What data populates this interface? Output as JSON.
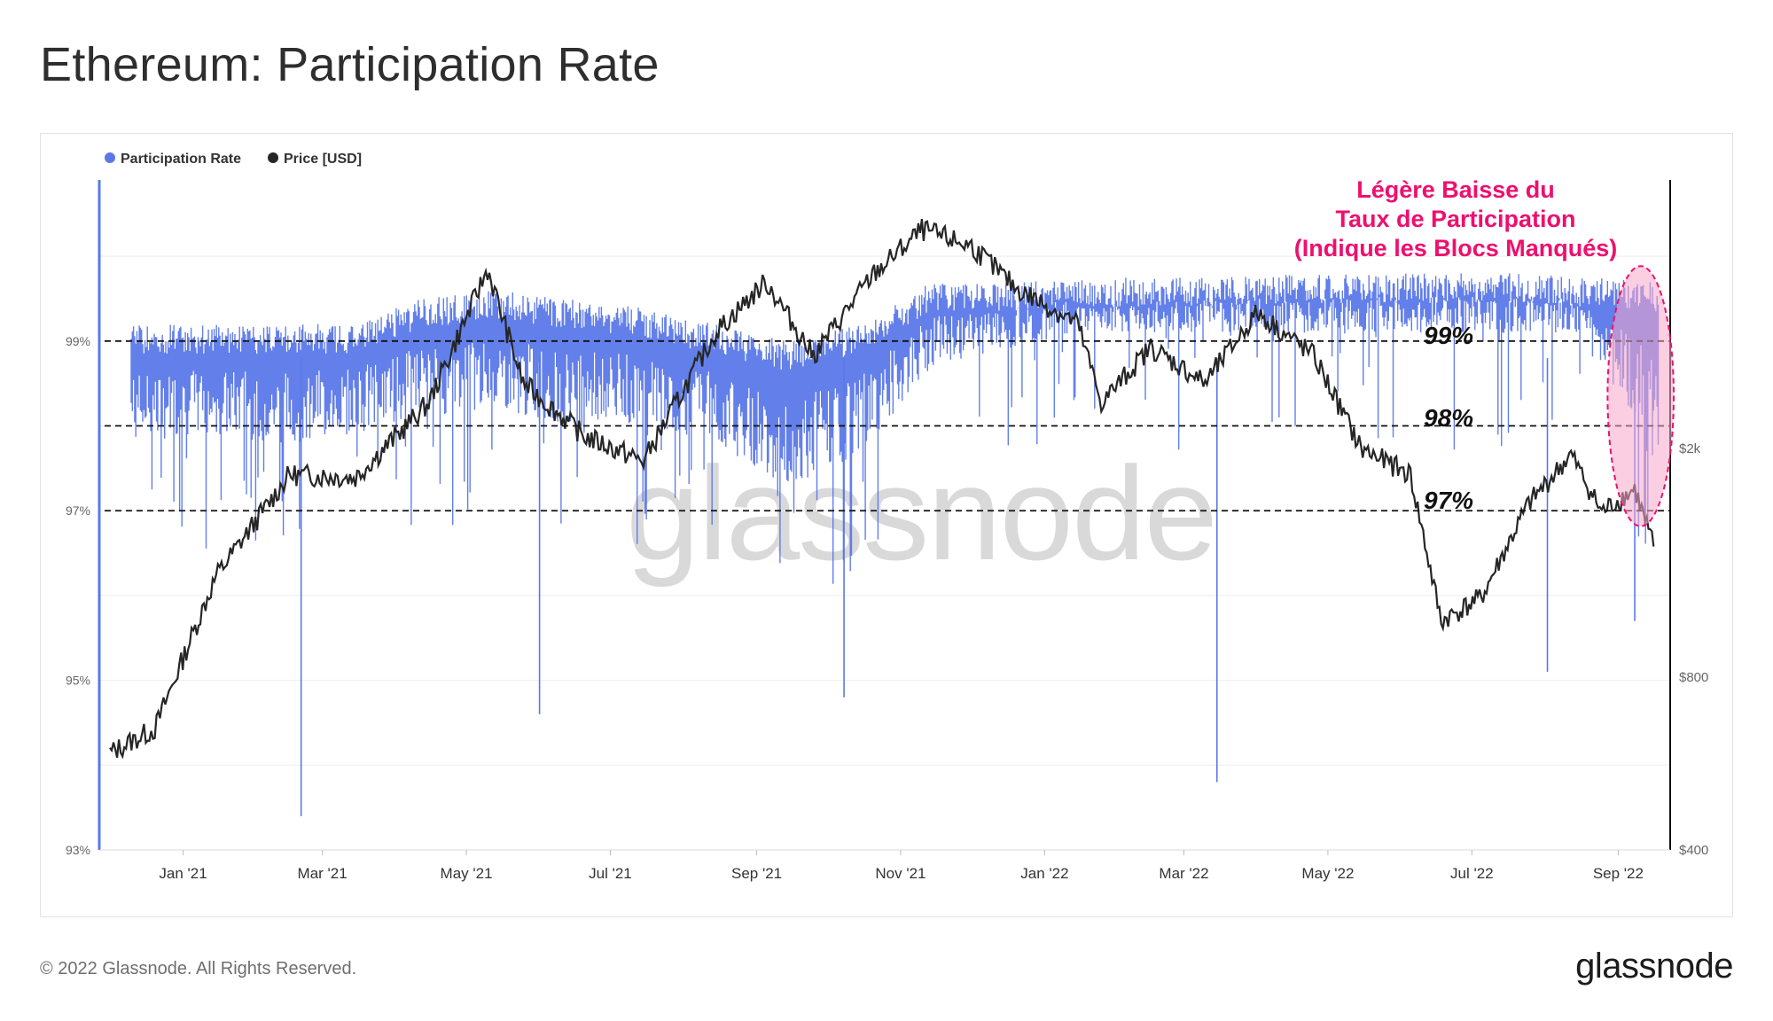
{
  "page": {
    "title": "Ethereum: Participation Rate",
    "copyright": "© 2022 Glassnode. All Rights Reserved.",
    "logo": "glassnode",
    "watermark": "glassnode"
  },
  "colors": {
    "participation": "#5b78e8",
    "price": "#262626",
    "annotation": "#ee0f6e",
    "highlight_fill": "#f7a8c8"
  },
  "chart_data": {
    "type": "line",
    "title": "Ethereum: Participation Rate",
    "legend": [
      {
        "name": "Participation Rate",
        "color": "#5b78e8"
      },
      {
        "name": "Price [USD]",
        "color": "#262626"
      }
    ],
    "legend_position": "top-left",
    "x_ticks": [
      "Jan '21",
      "Mar '21",
      "May '21",
      "Jul '21",
      "Sep '21",
      "Nov '21",
      "Jan '22",
      "Mar '22",
      "May '22",
      "Jul '22",
      "Sep '22"
    ],
    "y_left_ticks": [
      "99%",
      "97%",
      "95%",
      "93%"
    ],
    "y_left_range": [
      93,
      100.9
    ],
    "y_right_ticks": [
      "$2k",
      "$800",
      "$400"
    ],
    "y_right_scale": "log",
    "grid": true,
    "series": [
      {
        "name": "Participation Rate",
        "unit": "%",
        "monthly_points": [
          {
            "date": "2020-12",
            "low": 97.8,
            "high": 99.2
          },
          {
            "date": "2021-01",
            "low": 97.9,
            "high": 99.2
          },
          {
            "date": "2021-02",
            "low": 97.8,
            "high": 99.2
          },
          {
            "date": "2021-03",
            "low": 97.9,
            "high": 99.2
          },
          {
            "date": "2021-04",
            "low": 98.1,
            "high": 99.5
          },
          {
            "date": "2021-05",
            "low": 98.2,
            "high": 99.6
          },
          {
            "date": "2021-06",
            "low": 98.0,
            "high": 99.5
          },
          {
            "date": "2021-07",
            "low": 98.0,
            "high": 99.4
          },
          {
            "date": "2021-08",
            "low": 97.8,
            "high": 99.2
          },
          {
            "date": "2021-09",
            "low": 97.3,
            "high": 99.0
          },
          {
            "date": "2021-10",
            "low": 97.6,
            "high": 99.2
          },
          {
            "date": "2021-11",
            "low": 98.7,
            "high": 99.7
          },
          {
            "date": "2021-12",
            "low": 98.9,
            "high": 99.7
          },
          {
            "date": "2022-01",
            "low": 99.1,
            "high": 99.75
          },
          {
            "date": "2022-02",
            "low": 99.1,
            "high": 99.75
          },
          {
            "date": "2022-03",
            "low": 99.1,
            "high": 99.75
          },
          {
            "date": "2022-04",
            "low": 99.1,
            "high": 99.8
          },
          {
            "date": "2022-05",
            "low": 99.1,
            "high": 99.8
          },
          {
            "date": "2022-06",
            "low": 99.1,
            "high": 99.8
          },
          {
            "date": "2022-07",
            "low": 99.1,
            "high": 99.8
          },
          {
            "date": "2022-08",
            "low": 99.1,
            "high": 99.75
          },
          {
            "date": "2022-09",
            "low": 97.4,
            "high": 99.7
          }
        ],
        "notable_dips": [
          {
            "date": "2021-02-20",
            "value": 93.4
          },
          {
            "date": "2021-06-01",
            "value": 94.6
          },
          {
            "date": "2021-10-08",
            "value": 94.8
          },
          {
            "date": "2022-03-15",
            "value": 93.8
          },
          {
            "date": "2022-08-02",
            "value": 95.1
          },
          {
            "date": "2022-09-08",
            "value": 95.7
          }
        ]
      },
      {
        "name": "Price [USD]",
        "unit": "USD",
        "monthly_points": [
          {
            "date": "2020-12-01",
            "value": 590
          },
          {
            "date": "2020-12-20",
            "value": 650
          },
          {
            "date": "2021-01-15",
            "value": 1200
          },
          {
            "date": "2021-02-15",
            "value": 1800
          },
          {
            "date": "2021-03-15",
            "value": 1780
          },
          {
            "date": "2021-04-15",
            "value": 2400
          },
          {
            "date": "2021-05-10",
            "value": 4100
          },
          {
            "date": "2021-05-25",
            "value": 2600
          },
          {
            "date": "2021-06-20",
            "value": 2100
          },
          {
            "date": "2021-07-15",
            "value": 1900
          },
          {
            "date": "2021-08-15",
            "value": 3200
          },
          {
            "date": "2021-09-05",
            "value": 3900
          },
          {
            "date": "2021-09-25",
            "value": 2900
          },
          {
            "date": "2021-10-20",
            "value": 4000
          },
          {
            "date": "2021-11-10",
            "value": 4800
          },
          {
            "date": "2021-12-01",
            "value": 4500
          },
          {
            "date": "2021-12-20",
            "value": 3800
          },
          {
            "date": "2022-01-15",
            "value": 3300
          },
          {
            "date": "2022-01-25",
            "value": 2400
          },
          {
            "date": "2022-02-15",
            "value": 3000
          },
          {
            "date": "2022-03-10",
            "value": 2600
          },
          {
            "date": "2022-04-01",
            "value": 3450
          },
          {
            "date": "2022-04-25",
            "value": 2900
          },
          {
            "date": "2022-05-15",
            "value": 2000
          },
          {
            "date": "2022-06-05",
            "value": 1800
          },
          {
            "date": "2022-06-18",
            "value": 1000
          },
          {
            "date": "2022-07-05",
            "value": 1100
          },
          {
            "date": "2022-07-25",
            "value": 1600
          },
          {
            "date": "2022-08-12",
            "value": 1950
          },
          {
            "date": "2022-08-25",
            "value": 1550
          },
          {
            "date": "2022-09-08",
            "value": 1700
          },
          {
            "date": "2022-09-16",
            "value": 1350
          }
        ]
      }
    ],
    "reference_lines": [
      {
        "value": 99,
        "label": "99%"
      },
      {
        "value": 98,
        "label": "98%"
      },
      {
        "value": 97,
        "label": "97%"
      }
    ],
    "annotation": {
      "lines": [
        "Légère Baisse du",
        "Taux de Participation",
        "(Indique les Blocs Manqués)"
      ],
      "highlight_range": {
        "from": "2022-09-01",
        "to": "2022-09-20"
      }
    }
  }
}
